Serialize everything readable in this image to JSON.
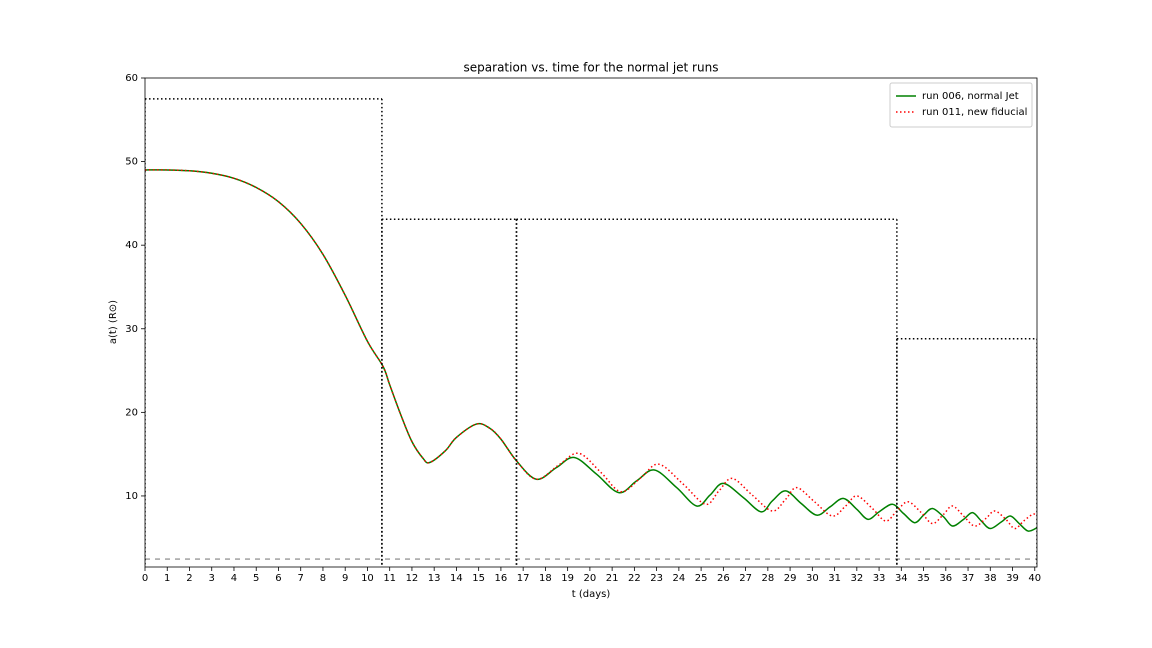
{
  "chart_data": {
    "type": "line",
    "title": "separation vs. time for the normal jet runs",
    "xlabel": "t (days)",
    "ylabel": "a(t) (R⊙)",
    "xlim": [
      0,
      40.1
    ],
    "ylim": [
      1.5,
      60
    ],
    "xticks": [
      0,
      1,
      2,
      3,
      4,
      5,
      6,
      7,
      8,
      9,
      10,
      11,
      12,
      13,
      14,
      15,
      16,
      17,
      18,
      19,
      20,
      21,
      22,
      23,
      24,
      25,
      26,
      27,
      28,
      29,
      30,
      31,
      32,
      33,
      34,
      35,
      36,
      37,
      38,
      39,
      40
    ],
    "yticks": [
      10,
      20,
      30,
      40,
      50,
      60
    ],
    "legend": "upper right",
    "series": [
      {
        "name": "run 006, normal Jet",
        "color": "#008000",
        "style": "solid",
        "x": [
          0,
          1,
          2,
          3,
          4,
          5,
          6,
          7,
          8,
          9,
          10,
          10.7,
          11,
          11.5,
          12,
          12.5,
          12.8,
          13.5,
          14,
          14.9,
          15.5,
          16,
          16.7,
          17.6,
          18.5,
          19.3,
          20.3,
          21.3,
          22.1,
          22.9,
          23.9,
          24.8,
          25.4,
          26.0,
          26.9,
          27.7,
          28.2,
          28.8,
          29.5,
          30.2,
          30.8,
          31.4,
          32.0,
          32.5,
          33.0,
          33.6,
          34.1,
          34.6,
          35.0,
          35.4,
          35.9,
          36.3,
          36.8,
          37.2,
          37.6,
          38.0,
          38.5,
          38.9,
          39.3,
          39.7,
          40.1
        ],
        "values": [
          49.0,
          49.0,
          48.9,
          48.6,
          48.0,
          46.9,
          45.2,
          42.6,
          38.9,
          34.0,
          28.5,
          25.5,
          23.3,
          19.7,
          16.5,
          14.5,
          14.0,
          15.4,
          17.0,
          18.6,
          18.1,
          16.8,
          14.2,
          12.0,
          13.4,
          14.6,
          12.6,
          10.4,
          11.8,
          13.1,
          11.0,
          8.8,
          10.1,
          11.5,
          9.8,
          8.1,
          9.4,
          10.6,
          9.1,
          7.7,
          8.7,
          9.7,
          8.4,
          7.2,
          8.1,
          9.0,
          7.9,
          6.8,
          7.7,
          8.5,
          7.5,
          6.4,
          7.2,
          8.0,
          7.0,
          6.1,
          6.9,
          7.6,
          6.7,
          5.8,
          6.2
        ]
      },
      {
        "name": "run 011, new fiducial",
        "color": "#ff0000",
        "style": "dotted",
        "x": [
          0,
          1,
          2,
          3,
          4,
          5,
          6,
          7,
          8,
          9,
          10,
          10.7,
          11,
          11.5,
          12,
          12.5,
          12.8,
          13.5,
          14,
          14.9,
          15.5,
          16,
          16.7,
          17.6,
          18.6,
          19.5,
          20.5,
          21.4,
          22.3,
          23.1,
          24.2,
          25.2,
          25.8,
          26.4,
          27.3,
          28.2,
          28.8,
          29.3,
          30.1,
          30.9,
          31.5,
          32.0,
          32.7,
          33.3,
          33.8,
          34.3,
          34.9,
          35.4,
          35.9,
          36.3,
          36.8,
          37.3,
          37.8,
          38.2,
          38.7,
          39.1,
          39.5,
          39.9,
          40.1
        ],
        "values": [
          49.0,
          49.0,
          48.9,
          48.6,
          48.0,
          46.9,
          45.2,
          42.6,
          38.9,
          34.0,
          28.5,
          25.5,
          23.3,
          19.7,
          16.5,
          14.5,
          14.0,
          15.4,
          17.0,
          18.6,
          18.1,
          16.8,
          14.2,
          12.0,
          13.7,
          15.1,
          12.8,
          10.5,
          12.2,
          13.8,
          11.4,
          9.0,
          10.6,
          12.1,
          10.1,
          8.2,
          9.6,
          11.0,
          9.3,
          7.6,
          8.8,
          10.0,
          8.5,
          7.0,
          8.2,
          9.3,
          8.0,
          6.7,
          7.8,
          8.8,
          7.6,
          6.4,
          7.3,
          8.2,
          7.2,
          6.1,
          7.0,
          7.8,
          7.7
        ]
      }
    ],
    "reference_boxes": [
      {
        "start": 0,
        "end": 10.65,
        "level": 57.5
      },
      {
        "start": 10.65,
        "end": 16.7,
        "level": 43.1
      },
      {
        "start": 16.7,
        "end": 33.8,
        "level": 43.1
      },
      {
        "start": 33.8,
        "end": 40.1,
        "level": 28.8
      }
    ],
    "reference_line": 2.45
  }
}
